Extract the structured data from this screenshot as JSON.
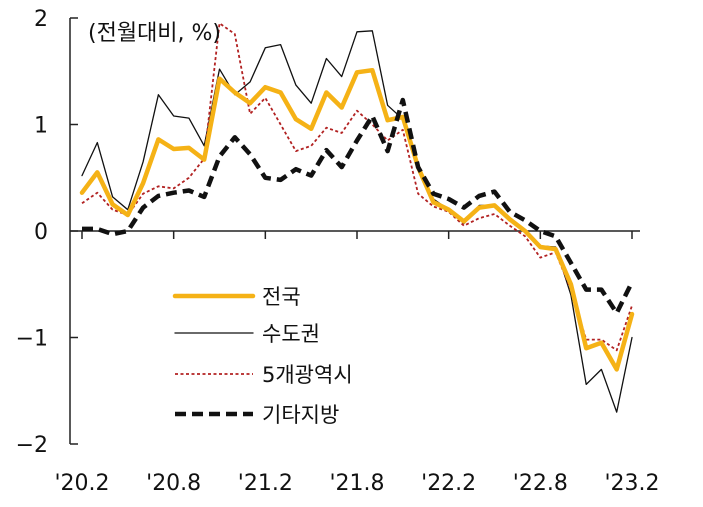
{
  "chart_data": {
    "type": "line",
    "unit_note": "(전월대비, %)",
    "ylim": [
      -2,
      2
    ],
    "y_ticks": [
      2,
      1,
      0,
      -1,
      -2
    ],
    "y_tick_labels": [
      "2",
      "1",
      "0",
      "−1",
      "−2"
    ],
    "x_tick_labels": [
      "'20.2",
      "'20.8",
      "'21.2",
      "'21.8",
      "'22.2",
      "'22.8",
      "'23.2"
    ],
    "x_tick_index": [
      0,
      6,
      12,
      18,
      24,
      30,
      36
    ],
    "grid": false,
    "legend_position": "lower-left inside",
    "series": [
      {
        "name": "전국",
        "color": "#F5B216",
        "style": "thick-solid",
        "values": [
          0.36,
          0.55,
          0.25,
          0.15,
          0.45,
          0.86,
          0.77,
          0.78,
          0.67,
          1.43,
          1.3,
          1.2,
          1.35,
          1.3,
          1.05,
          0.96,
          1.3,
          1.16,
          1.49,
          1.51,
          1.04,
          1.07,
          0.6,
          0.27,
          0.2,
          0.09,
          0.22,
          0.24,
          0.11,
          0.0,
          -0.15,
          -0.17,
          -0.5,
          -1.1,
          -1.05,
          -1.3,
          -0.78
        ]
      },
      {
        "name": "수도권",
        "color": "#111111",
        "style": "thin-solid",
        "values": [
          0.52,
          0.83,
          0.32,
          0.2,
          0.65,
          1.28,
          1.08,
          1.06,
          0.8,
          1.52,
          1.28,
          1.4,
          1.72,
          1.75,
          1.37,
          1.2,
          1.62,
          1.45,
          1.87,
          1.88,
          1.18,
          1.05,
          0.58,
          0.3,
          0.2,
          0.07,
          0.24,
          0.24,
          0.1,
          0.0,
          -0.14,
          -0.15,
          -0.6,
          -1.44,
          -1.3,
          -1.7,
          -1.0
        ]
      },
      {
        "name": "5개광역시",
        "color": "#B22222",
        "style": "dotted",
        "values": [
          0.26,
          0.36,
          0.2,
          0.15,
          0.35,
          0.42,
          0.4,
          0.5,
          0.68,
          1.95,
          1.85,
          1.1,
          1.25,
          1.0,
          0.75,
          0.8,
          0.97,
          0.92,
          1.13,
          1.0,
          0.85,
          0.95,
          0.35,
          0.23,
          0.18,
          0.05,
          0.12,
          0.16,
          0.05,
          -0.05,
          -0.25,
          -0.2,
          -0.55,
          -1.02,
          -1.02,
          -1.12,
          -0.7
        ]
      },
      {
        "name": "기타지방",
        "color": "#111111",
        "style": "thick-dashed",
        "values": [
          0.02,
          0.02,
          -0.03,
          0.0,
          0.22,
          0.33,
          0.36,
          0.38,
          0.32,
          0.7,
          0.88,
          0.72,
          0.5,
          0.48,
          0.58,
          0.52,
          0.76,
          0.6,
          0.85,
          1.08,
          0.75,
          1.23,
          0.6,
          0.35,
          0.3,
          0.22,
          0.33,
          0.37,
          0.18,
          0.1,
          0.0,
          -0.05,
          -0.3,
          -0.55,
          -0.55,
          -0.77,
          -0.48
        ]
      }
    ]
  }
}
